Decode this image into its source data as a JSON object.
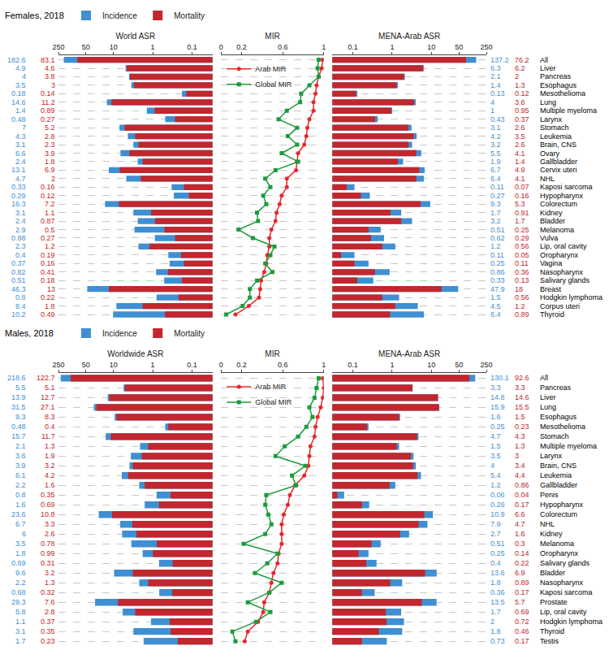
{
  "chart_data": [
    {
      "title": "Females, 2018",
      "categories": [
        "All",
        "Liver",
        "Pancreas",
        "Esophagus",
        "Mesothelioma",
        "Lung",
        "Multiple myeloma",
        "Larynx",
        "Stomach",
        "Leukemia",
        "Brain, CNS",
        "Ovary",
        "Gallbladder",
        "Cervix uteri",
        "NHL",
        "Kaposi sarcoma",
        "Hypopharynx",
        "Colorectum",
        "Kidney",
        "Bladder",
        "Melanoma",
        "Vulva",
        "Lip, oral cavity",
        "Oropharynx",
        "Vagina",
        "Nasopharynx",
        "Salivary glands",
        "Breast",
        "Hodgkin lymphoma",
        "Corpus uteri",
        "Thyroid"
      ],
      "panels": [
        {
          "type": "bar",
          "title": "World ASR",
          "orientation": "horizontal",
          "log": "x",
          "data_labels": true,
          "xlim": [
            0.03,
            250
          ],
          "xticks": [
            0.1,
            1,
            10,
            50,
            250
          ],
          "series": [
            {
              "name": "Incidence",
              "color": "#3f8fd2",
              "values": [
                182.6,
                4.9,
                4,
                3.5,
                0.18,
                14.6,
                1.4,
                0.48,
                7,
                4.3,
                3.1,
                6.6,
                2.4,
                13.1,
                4.7,
                0.33,
                0.29,
                16.3,
                3.1,
                2.4,
                2.9,
                0.88,
                2.3,
                0.4,
                0.37,
                0.82,
                0.51,
                46.3,
                0.8,
                8.4,
                10.2
              ]
            },
            {
              "name": "Mortality",
              "color": "#c1272d",
              "values": [
                83.1,
                4.6,
                3.8,
                3,
                0.14,
                11.2,
                0.89,
                0.27,
                5.2,
                2.8,
                2.3,
                3.9,
                1.8,
                6.9,
                2,
                0.16,
                0.12,
                7.2,
                1.1,
                0.87,
                0.5,
                0.27,
                1.2,
                0.19,
                0.16,
                0.41,
                0.18,
                13,
                0.22,
                1.8,
                0.49
              ]
            }
          ]
        },
        {
          "type": "line",
          "title": "MIR",
          "xlim": [
            0,
            1
          ],
          "xticks": [
            0,
            0.2,
            0.6,
            1
          ],
          "series": [
            {
              "name": "Arab MIR",
              "color": "#e8262b",
              "marker": "circle",
              "values": [
                0.99,
                0.98,
                0.95,
                0.93,
                0.92,
                0.9,
                0.9,
                0.86,
                0.84,
                0.83,
                0.81,
                0.75,
                0.74,
                0.73,
                0.64,
                0.64,
                0.59,
                0.57,
                0.54,
                0.53,
                0.49,
                0.47,
                0.47,
                0.45,
                0.44,
                0.42,
                0.39,
                0.38,
                0.37,
                0.27,
                0.14
              ]
            },
            {
              "name": "Global MIR",
              "color": "#1a9c3c",
              "marker": "square",
              "values": [
                0.95,
                0.94,
                0.95,
                0.86,
                0.78,
                0.77,
                0.64,
                0.56,
                0.74,
                0.65,
                0.74,
                0.59,
                0.75,
                0.53,
                0.43,
                0.48,
                0.41,
                0.44,
                0.35,
                0.36,
                0.17,
                0.31,
                0.52,
                0.48,
                0.43,
                0.5,
                0.35,
                0.28,
                0.28,
                0.21,
                0.05
              ]
            }
          ]
        },
        {
          "type": "bar",
          "title": "MENA-Arab ASR",
          "orientation": "horizontal",
          "log": "x",
          "data_labels": true,
          "xlim": [
            0.03,
            250
          ],
          "xticks": [
            0.1,
            1,
            10,
            50,
            250
          ],
          "series": [
            {
              "name": "Incidence",
              "color": "#3f8fd2",
              "values": [
                137.2,
                6.3,
                2.1,
                1.4,
                0.13,
                4,
                1,
                0.43,
                3.1,
                4.2,
                3.2,
                5.5,
                1.9,
                6.7,
                6.4,
                0.11,
                0.27,
                9.3,
                1.7,
                3.2,
                0.51,
                0.62,
                1.2,
                0.11,
                0.25,
                0.86,
                0.33,
                47.9,
                1.5,
                4.5,
                6.4
              ]
            },
            {
              "name": "Mortality",
              "color": "#c1272d",
              "values": [
                76.2,
                6.2,
                2,
                1.3,
                0.12,
                3.6,
                0.95,
                0.37,
                2.6,
                3.5,
                2.6,
                4.1,
                1.4,
                4.9,
                4.1,
                0.07,
                0.16,
                5.3,
                0.91,
                1.7,
                0.25,
                0.29,
                0.56,
                0.05,
                0.11,
                0.36,
                0.13,
                18,
                0.56,
                1.2,
                0.89
              ]
            }
          ]
        }
      ]
    },
    {
      "title": "Males, 2018",
      "categories": [
        "All",
        "Pancreas",
        "Liver",
        "Lung",
        "Esophagus",
        "Mesothelioma",
        "Stomach",
        "Multiple myeloma",
        "Larynx",
        "Brain, CNS",
        "Leukemia",
        "Gallbladder",
        "Penis",
        "Hypopharynx",
        "Colorectum",
        "NHL",
        "Kidney",
        "Melanoma",
        "Oropharynx",
        "Salivary glands",
        "Bladder",
        "Nasopharynx",
        "Kaposi sarcoma",
        "Prostate",
        "Lip, oral cavity",
        "Hodgkin lymphoma",
        "Thyroid",
        "Testis"
      ],
      "panels": [
        {
          "type": "bar",
          "title": "Worldwide ASR",
          "orientation": "horizontal",
          "log": "x",
          "data_labels": true,
          "xlim": [
            0.03,
            250
          ],
          "xticks": [
            0.1,
            1,
            10,
            50,
            250
          ],
          "series": [
            {
              "name": "Incidence",
              "color": "#3f8fd2",
              "values": [
                218.6,
                5.5,
                13.9,
                31.5,
                9.3,
                0.48,
                15.7,
                2.1,
                3.6,
                3.9,
                6.1,
                2.2,
                0.8,
                1.6,
                23.6,
                6.7,
                6,
                3.5,
                1.8,
                0.69,
                9.6,
                2.2,
                0.68,
                29.3,
                5.8,
                1.1,
                3.1,
                1.7
              ]
            },
            {
              "name": "Mortality",
              "color": "#c1272d",
              "values": [
                122.7,
                5.1,
                12.7,
                27.1,
                8.3,
                0.4,
                11.7,
                1.3,
                1.9,
                3.2,
                4.2,
                1.6,
                0.35,
                0.69,
                10.8,
                3.3,
                2.6,
                0.78,
                0.99,
                0.31,
                3.2,
                1.3,
                0.32,
                7.6,
                2.8,
                0.37,
                0.35,
                0.23
              ]
            }
          ]
        },
        {
          "type": "line",
          "title": "MIR",
          "xlim": [
            0,
            1
          ],
          "xticks": [
            0,
            0.2,
            0.6,
            1
          ],
          "series": [
            {
              "name": "Arab MIR",
              "color": "#e8262b",
              "marker": "circle",
              "values": [
                0.99,
                1,
                0.99,
                0.97,
                0.94,
                0.92,
                0.91,
                0.87,
                0.86,
                0.85,
                0.81,
                0.72,
                0.67,
                0.65,
                0.61,
                0.59,
                0.59,
                0.59,
                0.56,
                0.55,
                0.51,
                0.49,
                0.47,
                0.42,
                0.41,
                0.36,
                0.26,
                0.23
              ]
            },
            {
              "name": "Global MIR",
              "color": "#1a9c3c",
              "marker": "square",
              "values": [
                0.95,
                0.93,
                0.91,
                0.86,
                0.89,
                0.83,
                0.75,
                0.62,
                0.53,
                0.82,
                0.69,
                0.73,
                0.44,
                0.43,
                0.46,
                0.49,
                0.43,
                0.22,
                0.55,
                0.45,
                0.33,
                0.59,
                0.47,
                0.26,
                0.48,
                0.34,
                0.11,
                0.14
              ]
            }
          ]
        },
        {
          "type": "bar",
          "title": "MENA-Arab ASR",
          "orientation": "horizontal",
          "log": "x",
          "data_labels": true,
          "xlim": [
            0.03,
            250
          ],
          "xticks": [
            0.1,
            1,
            10,
            50,
            250
          ],
          "series": [
            {
              "name": "Incidence",
              "color": "#3f8fd2",
              "values": [
                130.1,
                3.3,
                14.8,
                15.9,
                1.6,
                0.25,
                4.7,
                1.5,
                3.5,
                4,
                5.4,
                1.2,
                0.06,
                0.26,
                10.9,
                7.9,
                2.7,
                0.51,
                0.25,
                0.4,
                13.6,
                1.8,
                0.36,
                13.5,
                1.7,
                2,
                1.8,
                0.73
              ]
            },
            {
              "name": "Mortality",
              "color": "#c1272d",
              "values": [
                92.6,
                3.3,
                14.6,
                15.5,
                1.5,
                0.23,
                4.3,
                1.3,
                3,
                3.4,
                4.4,
                0.86,
                0.04,
                0.17,
                6.6,
                4.7,
                1.6,
                0.3,
                0.14,
                0.22,
                6.9,
                0.89,
                0.17,
                5.7,
                0.69,
                0.72,
                0.46,
                0.17
              ]
            }
          ]
        }
      ]
    }
  ]
}
